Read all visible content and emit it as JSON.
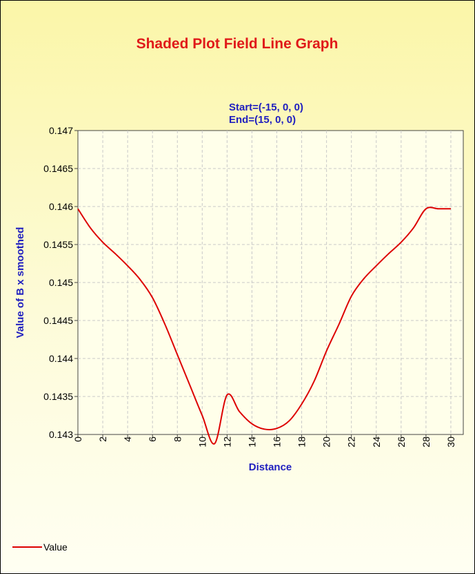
{
  "chart_data": {
    "type": "line",
    "title": "Shaded Plot Field Line Graph",
    "subtitle_lines": [
      "Start=(-15, 0, 0)",
      "End=(15, 0, 0)"
    ],
    "xlabel": "Distance",
    "ylabel": "Value of B x smoothed",
    "xlim": [
      0,
      31
    ],
    "ylim": [
      0.143,
      0.147
    ],
    "x_ticks": [
      0,
      2,
      4,
      6,
      8,
      10,
      12,
      14,
      16,
      18,
      20,
      22,
      24,
      26,
      28,
      30
    ],
    "y_ticks": [
      0.143,
      0.1435,
      0.144,
      0.1445,
      0.145,
      0.1455,
      0.146,
      0.1465,
      0.147
    ],
    "y_tick_labels": [
      "0.143",
      "0.1435",
      "0.144",
      "0.1445",
      "0.145",
      "0.1455",
      "0.146",
      "0.1465",
      "0.147"
    ],
    "grid": true,
    "legend_position": "bottom-left",
    "series": [
      {
        "name": "Value",
        "color": "#dd0000",
        "x": [
          0,
          1,
          2,
          3,
          4,
          5,
          6,
          7,
          8,
          9,
          10,
          11,
          12,
          13,
          14,
          15,
          16,
          17,
          18,
          19,
          20,
          21,
          22,
          23,
          24,
          25,
          26,
          27,
          28,
          29,
          30
        ],
        "y": [
          0.14597,
          0.14572,
          0.14553,
          0.14538,
          0.14522,
          0.14504,
          0.1448,
          0.14445,
          0.14405,
          0.14365,
          0.14325,
          0.14288,
          0.14352,
          0.1433,
          0.14314,
          0.14307,
          0.14308,
          0.14318,
          0.1434,
          0.1437,
          0.1441,
          0.14445,
          0.14482,
          0.14505,
          0.14522,
          0.14538,
          0.14553,
          0.14572,
          0.14597,
          0.14597,
          0.14597
        ]
      }
    ]
  }
}
